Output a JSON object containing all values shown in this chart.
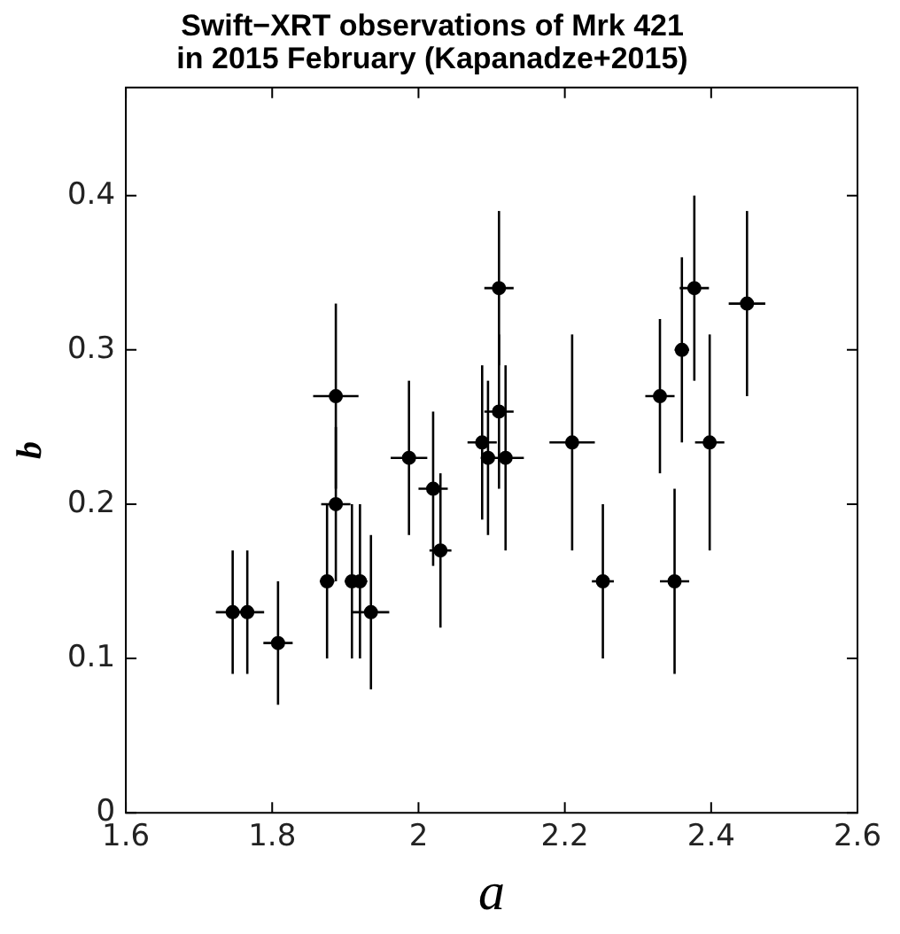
{
  "chart_data": {
    "type": "scatter",
    "title": [
      "Swift−XRT observations of Mrk 421",
      "in 2015 February (Kapanadze+2015)"
    ],
    "xlabel": "a",
    "ylabel": "b",
    "xlim": [
      1.6,
      2.6
    ],
    "xticks": [
      1.6,
      1.8,
      2,
      2.2,
      2.4,
      2.6
    ],
    "ylim": [
      0,
      0.47
    ],
    "yticks": [
      0,
      0.1,
      0.2,
      0.3,
      0.4
    ],
    "grid": false,
    "legend": false,
    "marker": "circle",
    "series": [
      {
        "color": "#000000",
        "x": [
          1.746,
          1.766,
          1.808,
          1.875,
          1.887,
          1.887,
          1.909,
          1.92,
          1.935,
          1.987,
          2.02,
          2.03,
          2.087,
          2.095,
          2.11,
          2.11,
          2.119,
          2.21,
          2.252,
          2.33,
          2.35,
          2.36,
          2.377,
          2.398,
          2.449
        ],
        "values": [
          0.13,
          0.13,
          0.11,
          0.15,
          0.27,
          0.2,
          0.15,
          0.15,
          0.13,
          0.23,
          0.21,
          0.17,
          0.24,
          0.23,
          0.34,
          0.26,
          0.23,
          0.24,
          0.15,
          0.27,
          0.15,
          0.3,
          0.34,
          0.24,
          0.33
        ],
        "errors": [
          [
            0.09,
            0.17
          ],
          [
            0.09,
            0.17
          ],
          [
            0.07,
            0.15
          ],
          [
            0.1,
            0.2
          ],
          [
            0.21,
            0.33
          ],
          [
            0.15,
            0.25
          ],
          [
            0.1,
            0.2
          ],
          [
            0.1,
            0.2
          ],
          [
            0.08,
            0.18
          ],
          [
            0.18,
            0.28
          ],
          [
            0.16,
            0.26
          ],
          [
            0.12,
            0.22
          ],
          [
            0.19,
            0.29
          ],
          [
            0.18,
            0.28
          ],
          [
            0.29,
            0.39
          ],
          [
            0.21,
            0.31
          ],
          [
            0.17,
            0.29
          ],
          [
            0.17,
            0.31
          ],
          [
            0.1,
            0.2
          ],
          [
            0.22,
            0.32
          ],
          [
            0.09,
            0.21
          ],
          [
            0.24,
            0.36
          ],
          [
            0.28,
            0.4
          ],
          [
            0.17,
            0.31
          ],
          [
            0.27,
            0.39
          ]
        ],
        "xerrors": [
          0.023,
          0.023,
          0.02,
          0.01,
          0.031,
          0.02,
          0.01,
          0.01,
          0.025,
          0.025,
          0.02,
          0.015,
          0.02,
          0.01,
          0.02,
          0.02,
          0.025,
          0.031,
          0.015,
          0.02,
          0.02,
          0.01,
          0.02,
          0.02,
          0.025
        ]
      }
    ]
  }
}
